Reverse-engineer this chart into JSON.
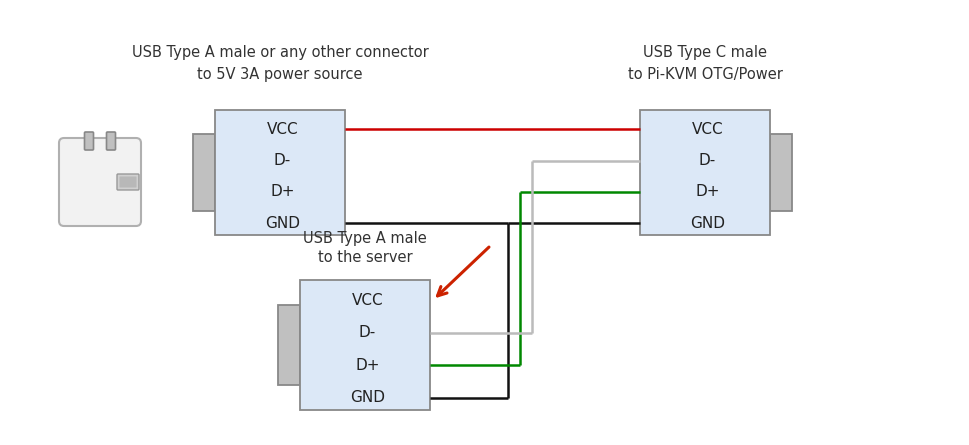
{
  "bg_color": "#ffffff",
  "connector_fill": "#dce8f7",
  "connector_edge": "#888888",
  "tab_fill": "#c0c0c0",
  "tab_edge": "#888888",
  "wire_red": "#cc0000",
  "wire_green": "#008800",
  "wire_black": "#111111",
  "wire_gray": "#bbbbbb",
  "arrow_red": "#cc2200",
  "label1_line1": "USB Type A male or any other connector",
  "label1_line2": "to 5V 3A power source",
  "label2_line1": "USB Type C male",
  "label2_line2": "to Pi-KVM OTG/Power",
  "label3_line1": "USB Type A male",
  "label3_line2": "to the server",
  "pins": [
    "VCC",
    "D-",
    "D+",
    "GND"
  ],
  "font_size": 11,
  "label_font_size": 10.5
}
